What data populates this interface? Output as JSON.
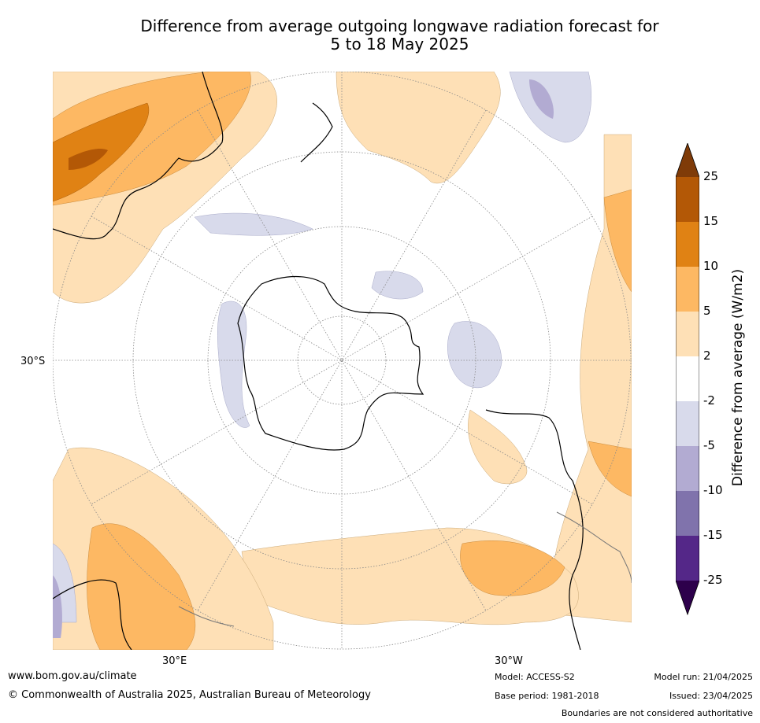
{
  "title": {
    "line1": "Difference from average outgoing longwave radiation forecast for",
    "line2": "5 to 18 May 2025"
  },
  "map": {
    "projection": "south polar stereographic",
    "latitude_label": "30°S",
    "longitude_labels": [
      "30°E",
      "30°W"
    ],
    "dominant_anomaly": "positive (2 to 10 W/m2) across mid-latitudes; weak negative (-2 to -5 W/m2) near Antarctica",
    "colors": {
      "ocean_background": "#ffffff",
      "coastline": "#000000",
      "graticule": "#888888"
    }
  },
  "colorbar": {
    "label": "Difference from average (W/m2)",
    "ticks": [
      "25",
      "15",
      "10",
      "5",
      "2",
      "-2",
      "-5",
      "-10",
      "-15",
      "-25"
    ],
    "bins": [
      {
        "range": ">25",
        "color": "#7f3b08"
      },
      {
        "range": "15 to 25",
        "color": "#b35806"
      },
      {
        "range": "10 to 15",
        "color": "#e08214"
      },
      {
        "range": "5 to 10",
        "color": "#fdb863"
      },
      {
        "range": "2 to 5",
        "color": "#fee0b6"
      },
      {
        "range": "-2 to 2",
        "color": "#ffffff"
      },
      {
        "range": "-5 to -2",
        "color": "#d8daeb"
      },
      {
        "range": "-10 to -5",
        "color": "#b2abd2"
      },
      {
        "range": "-15 to -10",
        "color": "#8073ac"
      },
      {
        "range": "-25 to -15",
        "color": "#542788"
      },
      {
        "range": "<-25",
        "color": "#2d004b"
      }
    ]
  },
  "footer": {
    "website": "www.bom.gov.au/climate",
    "copyright": "© Commonwealth of Australia 2025, Australian Bureau of Meteorology",
    "model": "Model: ACCESS-S2",
    "base_period": "Base period: 1981-2018",
    "model_run": "Model run: 21/04/2025",
    "issued": "Issued: 23/04/2025",
    "disclaimer": "Boundaries are not considered authoritative"
  }
}
